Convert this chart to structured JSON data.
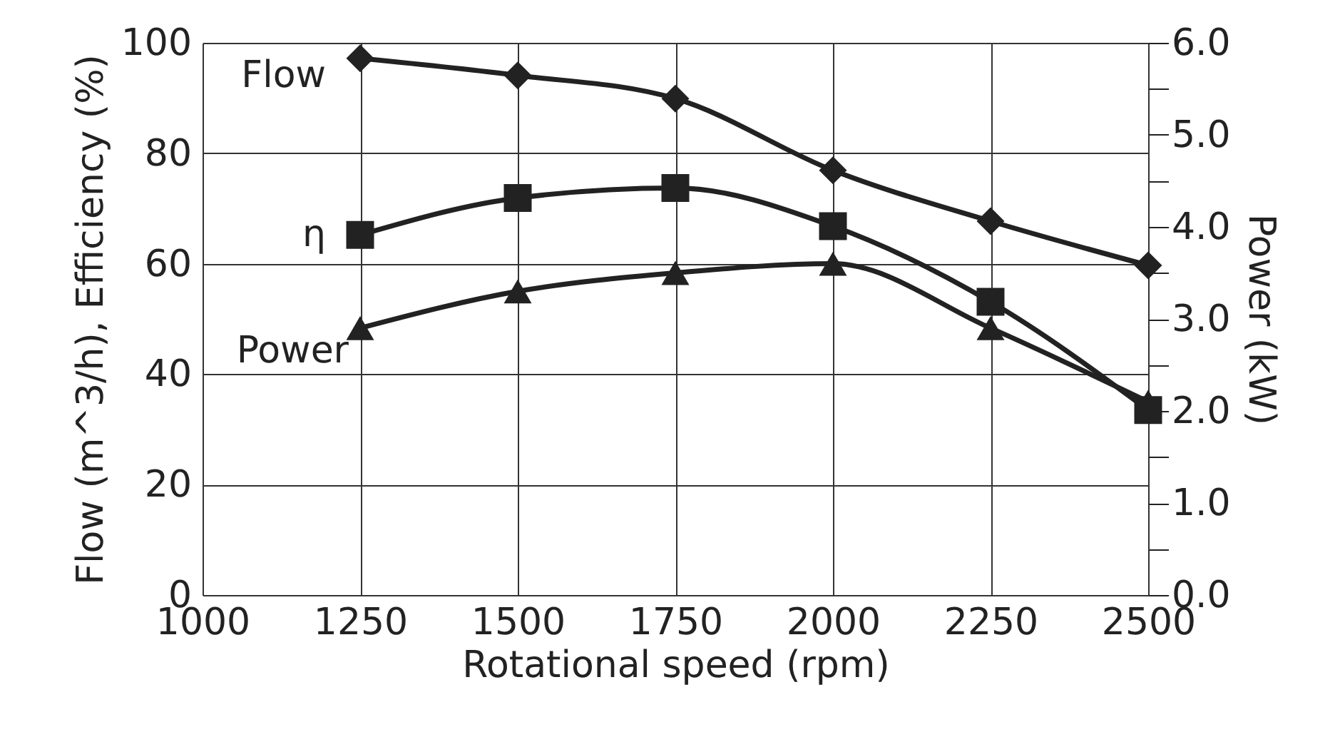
{
  "chart_data": {
    "type": "line",
    "xlabel": "Rotational speed (rpm)",
    "ylabel": "Flow (m^3/h), Efficiency (%)",
    "y2label": "Power (kW)",
    "x": [
      1250,
      1500,
      1750,
      2000,
      2250,
      2500
    ],
    "xlim": [
      1000,
      2500
    ],
    "xticks": [
      1000,
      1250,
      1500,
      1750,
      2000,
      2250,
      2500
    ],
    "ylim": [
      0,
      100
    ],
    "yticks": [
      0,
      20,
      40,
      60,
      80,
      100
    ],
    "y2lim": [
      0,
      6
    ],
    "y2ticks": [
      {
        "value": 0,
        "label": "0.0"
      },
      {
        "value": 0.5,
        "label": null
      },
      {
        "value": 1,
        "label": "1.0"
      },
      {
        "value": 1.5,
        "label": null
      },
      {
        "value": 2,
        "label": "2.0"
      },
      {
        "value": 2.5,
        "label": null
      },
      {
        "value": 3,
        "label": "3.0"
      },
      {
        "value": 3.5,
        "label": null
      },
      {
        "value": 4,
        "label": "4.0"
      },
      {
        "value": 4.5,
        "label": null
      },
      {
        "value": 5,
        "label": "5.0"
      },
      {
        "value": 5.5,
        "label": null
      },
      {
        "value": 6,
        "label": "6.0"
      }
    ],
    "grid": true,
    "line_style": "solid",
    "series": [
      {
        "name": "Flow",
        "color": "#222222",
        "marker": "diamond",
        "values": [
          97.2,
          94.1,
          89.9,
          76.9,
          67.7,
          59.7
        ]
      },
      {
        "name": "η",
        "color": "#222222",
        "marker": "square",
        "values": [
          65.2,
          71.9,
          73.7,
          66.8,
          53.1,
          33.5
        ]
      },
      {
        "name": "Power",
        "color": "#222222",
        "marker": "triangle",
        "axis": "y2",
        "values": [
          2.9,
          3.3,
          3.5,
          3.6,
          2.9,
          2.1
        ]
      }
    ]
  }
}
